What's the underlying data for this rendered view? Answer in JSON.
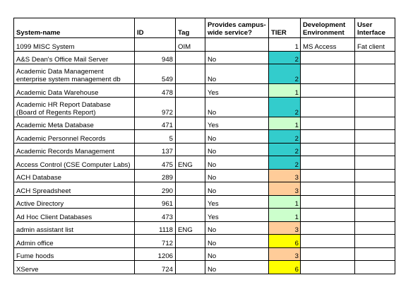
{
  "columns": [
    "System-name",
    "ID",
    "Tag",
    "Provides campus-wide service?",
    "TIER",
    "Development Environment",
    "User Interface"
  ],
  "tier_colors": {
    "1": "#ccffcc",
    "2": "#33cccc",
    "3": "#ffcc99",
    "6": "#ffff00"
  },
  "rows": [
    {
      "name": "1099 MISC System",
      "id": "",
      "tag": "OIM",
      "service": "",
      "tier": "1",
      "tier_color": "#ffffff",
      "dev_env": "MS Access",
      "ui": "Fat client",
      "tall": false
    },
    {
      "name": "A&S Dean's Office Mail Server",
      "id": "948",
      "tag": "",
      "service": "No",
      "tier": "2",
      "tier_color": "#33cccc",
      "dev_env": "",
      "ui": "",
      "tall": false
    },
    {
      "name": "Academic Data Management enterprise system management db",
      "id": "549",
      "tag": "",
      "service": "No",
      "tier": "2",
      "tier_color": "#33cccc",
      "dev_env": "",
      "ui": "",
      "tall": true
    },
    {
      "name": "Academic Data Warehouse",
      "id": "478",
      "tag": "",
      "service": "Yes",
      "tier": "1",
      "tier_color": "#ccffcc",
      "dev_env": "",
      "ui": "",
      "tall": false
    },
    {
      "name": "Academic HR Report Database (Board of Regents Report)",
      "id": "972",
      "tag": "",
      "service": "No",
      "tier": "2",
      "tier_color": "#33cccc",
      "dev_env": "",
      "ui": "",
      "tall": true
    },
    {
      "name": "Academic Meta Database",
      "id": "471",
      "tag": "",
      "service": "Yes",
      "tier": "1",
      "tier_color": "#ccffcc",
      "dev_env": "",
      "ui": "",
      "tall": false
    },
    {
      "name": "Academic Personnel Records",
      "id": "5",
      "tag": "",
      "service": "No",
      "tier": "2",
      "tier_color": "#33cccc",
      "dev_env": "",
      "ui": "",
      "tall": false
    },
    {
      "name": "Academic Records Management",
      "id": "137",
      "tag": "",
      "service": "No",
      "tier": "2",
      "tier_color": "#33cccc",
      "dev_env": "",
      "ui": "",
      "tall": false
    },
    {
      "name": "Access Control (CSE Computer Labs)",
      "id": "475",
      "tag": "ENG",
      "service": "No",
      "tier": "2",
      "tier_color": "#33cccc",
      "dev_env": "",
      "ui": "",
      "tall": false
    },
    {
      "name": "ACH Database",
      "id": "289",
      "tag": "",
      "service": "No",
      "tier": "3",
      "tier_color": "#ffcc99",
      "dev_env": "",
      "ui": "",
      "tall": false
    },
    {
      "name": "ACH Spreadsheet",
      "id": "290",
      "tag": "",
      "service": "No",
      "tier": "3",
      "tier_color": "#ffcc99",
      "dev_env": "",
      "ui": "",
      "tall": false
    },
    {
      "name": "Active Directory",
      "id": "961",
      "tag": "",
      "service": "Yes",
      "tier": "1",
      "tier_color": "#ccffcc",
      "dev_env": "",
      "ui": "",
      "tall": false
    },
    {
      "name": "Ad Hoc Client Databases",
      "id": "473",
      "tag": "",
      "service": "Yes",
      "tier": "1",
      "tier_color": "#ccffcc",
      "dev_env": "",
      "ui": "",
      "tall": false
    },
    {
      "name": "admin assistant list",
      "id": "1118",
      "tag": "ENG",
      "service": "No",
      "tier": "3",
      "tier_color": "#ffcc99",
      "dev_env": "",
      "ui": "",
      "tall": false
    },
    {
      "name": "Admin office",
      "id": "712",
      "tag": "",
      "service": "No",
      "tier": "6",
      "tier_color": "#ffff00",
      "dev_env": "",
      "ui": "",
      "tall": false
    },
    {
      "name": "Fume hoods",
      "id": "1206",
      "tag": "",
      "service": "No",
      "tier": "3",
      "tier_color": "#ffcc99",
      "dev_env": "",
      "ui": "",
      "tall": false
    },
    {
      "name": "XServe",
      "id": "724",
      "tag": "",
      "service": "No",
      "tier": "6",
      "tier_color": "#ffff00",
      "dev_env": "",
      "ui": "",
      "tall": false
    }
  ]
}
